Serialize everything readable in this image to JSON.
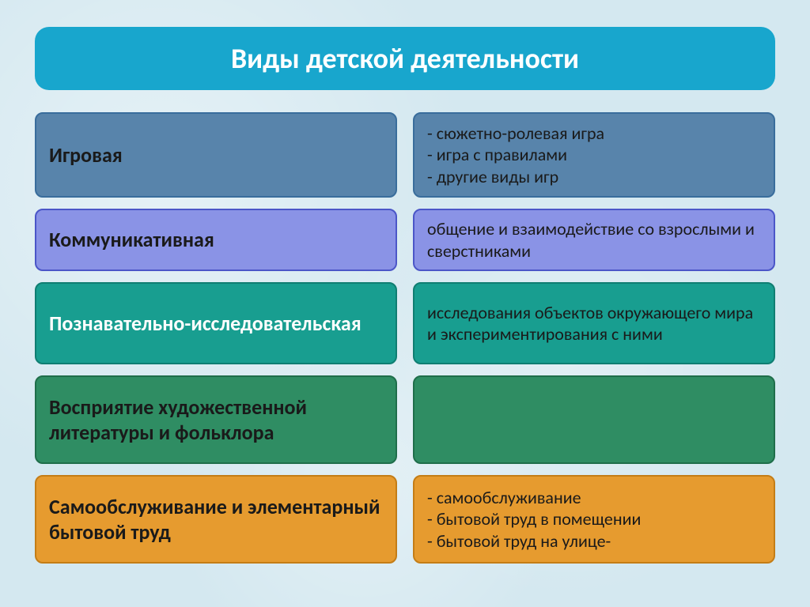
{
  "title": "Виды детской деятельности",
  "colors": {
    "title_bg": "#18a6cd",
    "title_text": "#ffffff",
    "page_bg": "#d4e8f0"
  },
  "rows": [
    {
      "left_label": "Игровая",
      "left_bg": "#5884ab",
      "left_border": "#396d9c",
      "left_text_light": false,
      "right_lines": [
        "- сюжетно-ролевая игра",
        "- игра с правилами",
        "- другие виды игр"
      ],
      "right_bg": "#5884ab",
      "right_border": "#396d9c",
      "right_text_light": false,
      "row_class": "row1"
    },
    {
      "left_label": "Коммуникативная",
      "left_bg": "#8a93e6",
      "left_border": "#4b56c8",
      "left_text_light": false,
      "right_lines": [
        "общение и взаимодействие со взрослыми и сверстниками"
      ],
      "right_bg": "#8a93e6",
      "right_border": "#4b56c8",
      "right_text_light": false,
      "row_class": "row2"
    },
    {
      "left_label": "Познавательно-исследовательская",
      "left_bg": "#189e90",
      "left_border": "#0f7e72",
      "left_text_light": true,
      "right_lines": [
        "исследования объектов окружающего мира и экспериментирования с ними"
      ],
      "right_bg": "#189e90",
      "right_border": "#0f7e72",
      "right_text_light": false,
      "row_class": "row3"
    },
    {
      "left_label": "Восприятие художественной литературы и фольклора",
      "left_bg": "#2f8d63",
      "left_border": "#1f6e4a",
      "left_text_light": false,
      "right_lines": [],
      "right_bg": "#2f8d63",
      "right_border": "#1f6e4a",
      "right_text_light": false,
      "row_class": "row4"
    },
    {
      "left_label": "Самообслуживание и элементарный бытовой труд",
      "left_bg": "#e69b2f",
      "left_border": "#c47d16",
      "left_text_light": false,
      "right_lines": [
        "- самообслуживание",
        "- бытовой труд в помещении",
        "- бытовой труд на улице-"
      ],
      "right_bg": "#e69b2f",
      "right_border": "#c47d16",
      "right_text_light": false,
      "row_class": "row5"
    }
  ]
}
